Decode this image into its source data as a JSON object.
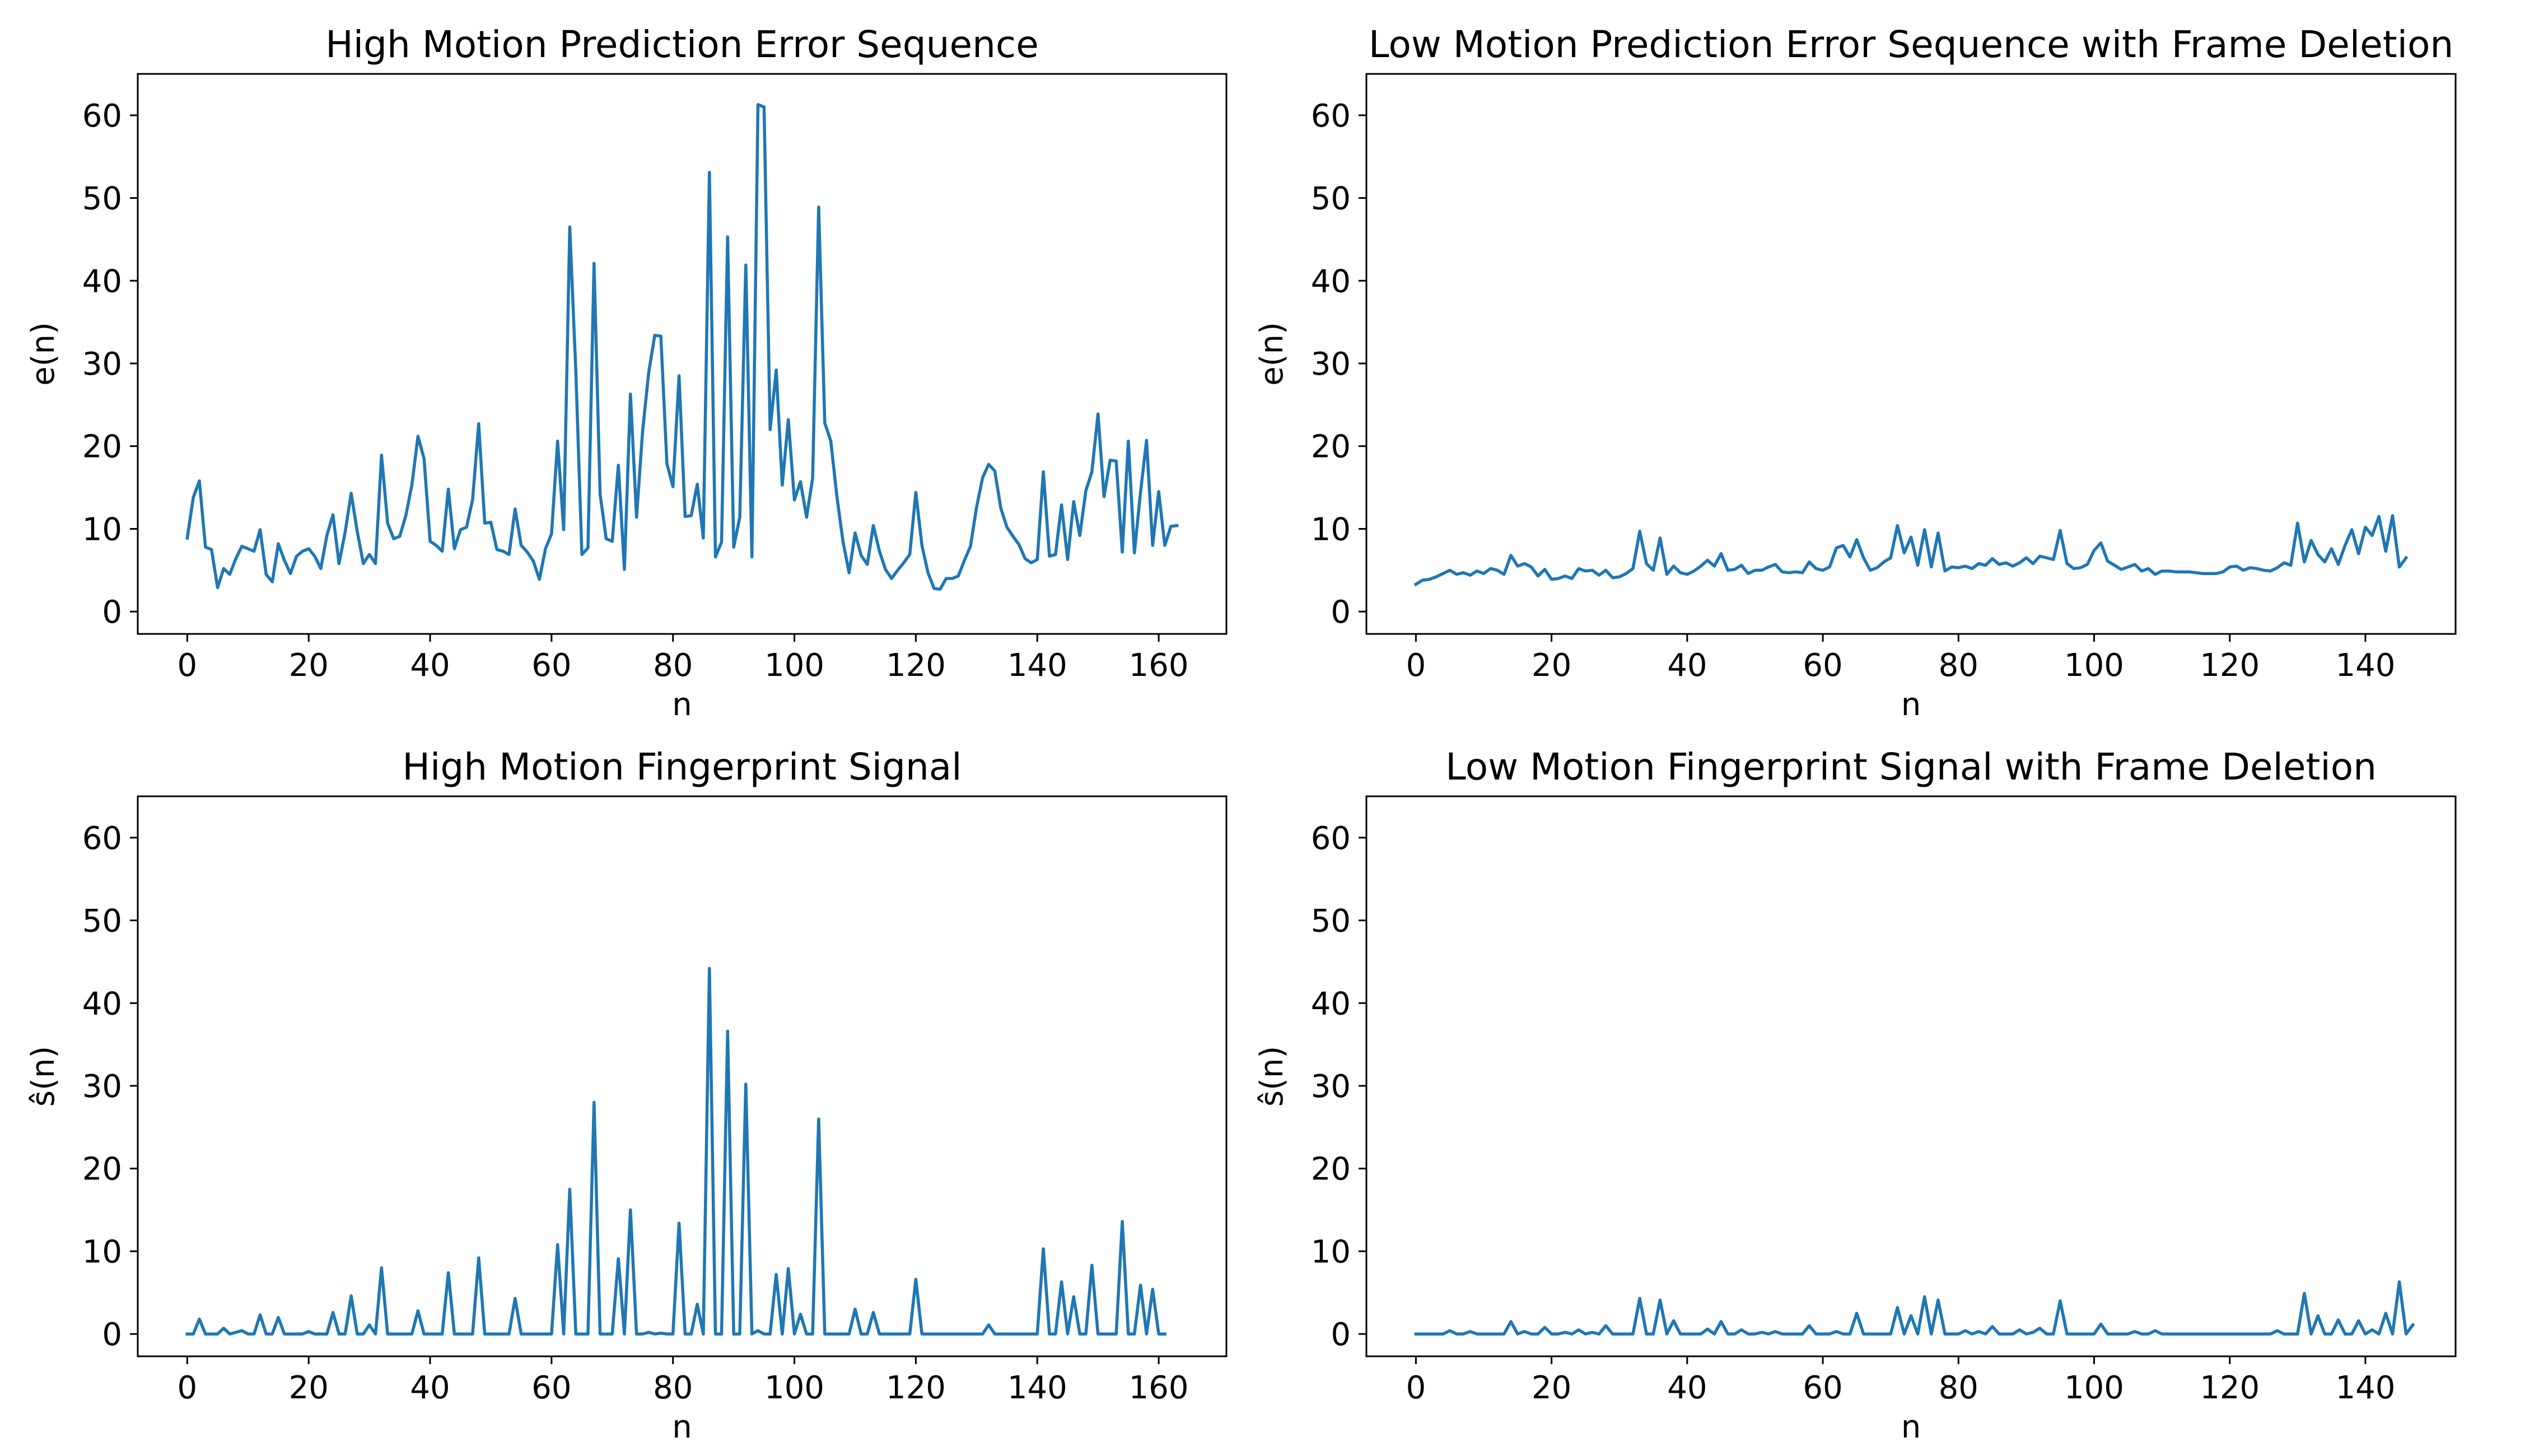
{
  "chart_data": [
    {
      "type": "line",
      "title": "High Motion Prediction Error Sequence",
      "xlabel": "n",
      "ylabel": "e(n)",
      "xlim": [
        -8.15,
        171.15
      ],
      "ylim": [
        -2.7,
        65
      ],
      "xticks": [
        0,
        20,
        40,
        60,
        80,
        100,
        120,
        140,
        160
      ],
      "yticks": [
        0,
        10,
        20,
        30,
        40,
        50,
        60
      ],
      "grid": false,
      "legend": "none",
      "series": [
        {
          "color": "#1f77b4",
          "x_start": 0,
          "values": [
            8.9,
            13.8,
            15.8,
            7.8,
            7.5,
            2.9,
            5.2,
            4.5,
            6.4,
            7.9,
            7.6,
            7.3,
            9.9,
            4.5,
            3.6,
            8.2,
            6.2,
            4.6,
            6.7,
            7.3,
            7.6,
            6.7,
            5.2,
            9.2,
            11.7,
            5.8,
            9.6,
            14.3,
            9.7,
            5.8,
            6.9,
            5.8,
            18.9,
            10.7,
            8.8,
            9.1,
            11.6,
            15.3,
            21.2,
            18.5,
            8.5,
            8.0,
            7.3,
            14.8,
            7.6,
            9.9,
            10.2,
            13.5,
            22.7,
            10.7,
            10.8,
            7.5,
            7.3,
            6.9,
            12.4,
            8.0,
            7.2,
            6.1,
            3.9,
            7.6,
            9.4,
            20.6,
            9.9,
            46.5,
            29.0,
            6.9,
            7.7,
            42.1,
            14.2,
            8.8,
            8.5,
            17.7,
            5.1,
            26.3,
            11.4,
            21.8,
            28.9,
            33.4,
            33.3,
            17.9,
            15.1,
            28.5,
            11.5,
            11.6,
            15.4,
            8.9,
            53.1,
            6.6,
            8.4,
            45.3,
            7.8,
            11.4,
            41.9,
            6.6,
            61.3,
            61.0,
            22.0,
            29.2,
            15.3,
            23.2,
            13.5,
            15.7,
            11.4,
            16.1,
            48.9,
            22.8,
            20.6,
            13.9,
            8.5,
            4.7,
            9.5,
            6.8,
            5.7,
            10.4,
            7.3,
            5.1,
            4.0,
            5.0,
            5.9,
            6.9,
            14.4,
            8.0,
            4.7,
            2.8,
            2.7,
            4.0,
            4.0,
            4.3,
            6.2,
            7.9,
            12.6,
            16.2,
            17.8,
            17.0,
            12.5,
            10.2,
            9.1,
            8.1,
            6.4,
            5.9,
            6.3,
            16.9,
            6.7,
            6.9,
            12.9,
            6.3,
            13.3,
            9.2,
            14.6,
            16.9,
            23.9,
            13.9,
            18.3,
            18.2,
            7.2,
            20.6,
            7.1,
            14.4,
            20.7,
            8.0,
            14.5,
            8.0,
            10.3,
            10.4
          ]
        }
      ]
    },
    {
      "type": "line",
      "title": "Low Motion Prediction Error Sequence with Frame Deletion",
      "xlabel": "n",
      "ylabel": "e(n)",
      "xlim": [
        -7.3,
        153.3
      ],
      "ylim": [
        -2.7,
        65
      ],
      "xticks": [
        0,
        20,
        40,
        60,
        80,
        100,
        120,
        140
      ],
      "yticks": [
        0,
        10,
        20,
        30,
        40,
        50,
        60
      ],
      "grid": false,
      "legend": "none",
      "series": [
        {
          "color": "#1f77b4",
          "x_start": 0,
          "values": [
            3.3,
            3.8,
            3.9,
            4.2,
            4.6,
            5.0,
            4.5,
            4.7,
            4.4,
            4.9,
            4.6,
            5.2,
            5.0,
            4.5,
            6.8,
            5.5,
            5.8,
            5.4,
            4.3,
            5.1,
            3.9,
            4.0,
            4.3,
            4.0,
            5.2,
            4.9,
            5.0,
            4.4,
            5.0,
            4.1,
            4.2,
            4.6,
            5.2,
            9.7,
            5.8,
            5.0,
            8.9,
            4.5,
            5.5,
            4.7,
            4.5,
            4.9,
            5.5,
            6.2,
            5.5,
            7.0,
            5.0,
            5.1,
            5.6,
            4.6,
            5.0,
            5.0,
            5.4,
            5.7,
            4.8,
            4.7,
            4.8,
            4.7,
            6.0,
            5.2,
            5.0,
            5.4,
            7.7,
            8.0,
            6.6,
            8.7,
            6.5,
            5.0,
            5.3,
            6.0,
            6.5,
            10.4,
            7.1,
            9.0,
            5.6,
            9.9,
            5.4,
            9.5,
            4.9,
            5.4,
            5.3,
            5.5,
            5.2,
            5.8,
            5.6,
            6.4,
            5.7,
            5.9,
            5.5,
            5.9,
            6.5,
            5.8,
            6.7,
            6.5,
            6.3,
            9.8,
            5.8,
            5.2,
            5.3,
            5.7,
            7.4,
            8.3,
            6.1,
            5.6,
            5.1,
            5.4,
            5.7,
            4.9,
            5.2,
            4.5,
            4.9,
            4.9,
            4.8,
            4.8,
            4.8,
            4.7,
            4.6,
            4.6,
            4.6,
            4.8,
            5.4,
            5.5,
            5.0,
            5.3,
            5.2,
            5.0,
            4.9,
            5.3,
            5.9,
            5.6,
            10.7,
            6.0,
            8.6,
            6.9,
            6.0,
            7.6,
            5.7,
            8.0,
            9.9,
            7.0,
            10.2,
            9.2,
            11.5,
            7.3,
            11.6,
            5.4,
            6.5
          ]
        }
      ]
    },
    {
      "type": "line",
      "title": "High Motion Fingerprint Signal",
      "xlabel": "n",
      "ylabel": "ŝ(n)",
      "xlim": [
        -8.15,
        171.15
      ],
      "ylim": [
        -2.7,
        65
      ],
      "xticks": [
        0,
        20,
        40,
        60,
        80,
        100,
        120,
        140,
        160
      ],
      "yticks": [
        0,
        10,
        20,
        30,
        40,
        50,
        60
      ],
      "grid": false,
      "legend": "none",
      "series": [
        {
          "color": "#1f77b4",
          "x_start": 0,
          "values": [
            0,
            0,
            1.8,
            0,
            0,
            0,
            0.7,
            0,
            0.2,
            0.4,
            0,
            0,
            2.3,
            0,
            0,
            2.0,
            0,
            0,
            0,
            0,
            0.3,
            0,
            0,
            0,
            2.6,
            0,
            0,
            4.6,
            0,
            0,
            1.1,
            0,
            8.0,
            0,
            0,
            0,
            0,
            0,
            2.8,
            0,
            0,
            0,
            0,
            7.4,
            0,
            0,
            0,
            0,
            9.2,
            0,
            0,
            0,
            0,
            0,
            4.3,
            0,
            0,
            0,
            0,
            0,
            0,
            10.8,
            0,
            17.5,
            0,
            0,
            0,
            28.0,
            0,
            0,
            0,
            9.1,
            0,
            15.0,
            0,
            0,
            0.2,
            0,
            0.1,
            0,
            0,
            13.4,
            0,
            0,
            3.6,
            0,
            44.2,
            0,
            0,
            36.6,
            0,
            0,
            30.2,
            0,
            0.4,
            0,
            0,
            7.2,
            0,
            7.9,
            0,
            2.4,
            0,
            0,
            26.0,
            0,
            0,
            0,
            0,
            0,
            3.0,
            0,
            0,
            2.6,
            0,
            0,
            0,
            0,
            0,
            0,
            6.6,
            0,
            0,
            0,
            0,
            0,
            0,
            0,
            0,
            0,
            0,
            0,
            1.1,
            0,
            0,
            0,
            0,
            0,
            0,
            0,
            0,
            10.3,
            0,
            0,
            6.3,
            0,
            4.5,
            0,
            0,
            8.3,
            0,
            0,
            0,
            0,
            13.6,
            0,
            0,
            5.9,
            0,
            5.4,
            0,
            0
          ]
        }
      ]
    },
    {
      "type": "line",
      "title": "Low Motion Fingerprint Signal with Frame Deletion",
      "xlabel": "n",
      "ylabel": "ŝ(n)",
      "xlim": [
        -7.3,
        153.3
      ],
      "ylim": [
        -2.7,
        65
      ],
      "xticks": [
        0,
        20,
        40,
        60,
        80,
        100,
        120,
        140
      ],
      "yticks": [
        0,
        10,
        20,
        30,
        40,
        50,
        60
      ],
      "grid": false,
      "legend": "none",
      "series": [
        {
          "color": "#1f77b4",
          "x_start": 0,
          "values": [
            0,
            0,
            0,
            0,
            0,
            0.4,
            0,
            0,
            0.3,
            0,
            0,
            0,
            0,
            0,
            1.5,
            0,
            0.3,
            0,
            0,
            0.8,
            0,
            0,
            0.2,
            0,
            0.5,
            0,
            0.2,
            0,
            1.0,
            0,
            0,
            0,
            0,
            4.3,
            0,
            0,
            4.1,
            0,
            1.6,
            0,
            0,
            0,
            0,
            0.6,
            0,
            1.5,
            0,
            0,
            0.5,
            0,
            0,
            0.2,
            0,
            0.3,
            0,
            0,
            0,
            0,
            1.0,
            0,
            0,
            0,
            0.3,
            0,
            0,
            2.5,
            0,
            0,
            0,
            0,
            0,
            3.2,
            0,
            2.2,
            0,
            4.5,
            0,
            4.1,
            0,
            0,
            0,
            0.4,
            0,
            0.3,
            0,
            0.9,
            0,
            0,
            0,
            0.5,
            0,
            0.2,
            0.7,
            0,
            0,
            4.0,
            0,
            0,
            0,
            0,
            0,
            1.2,
            0,
            0,
            0,
            0,
            0.3,
            0,
            0,
            0.4,
            0,
            0,
            0,
            0,
            0,
            0,
            0,
            0,
            0,
            0,
            0,
            0,
            0,
            0,
            0,
            0,
            0,
            0.4,
            0,
            0,
            0,
            4.9,
            0,
            2.2,
            0,
            0,
            1.7,
            0,
            0,
            1.6,
            0,
            0.5,
            0,
            2.5,
            0,
            6.3,
            0,
            1.1
          ]
        }
      ]
    }
  ]
}
